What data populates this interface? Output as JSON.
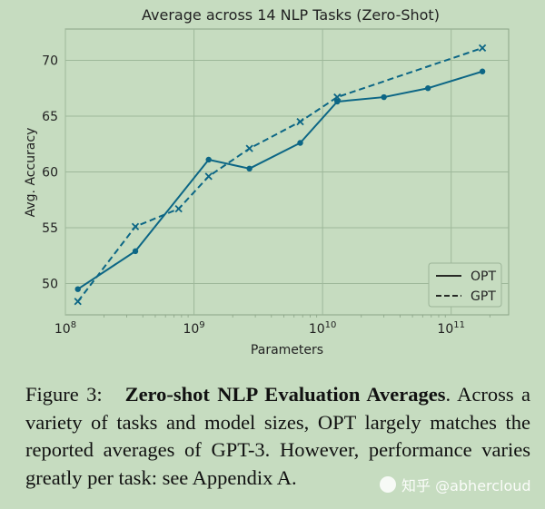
{
  "chart_data": {
    "type": "line",
    "title": "Average across 14 NLP Tasks (Zero-Shot)",
    "xlabel": "Parameters",
    "ylabel": "Avg. Accuracy",
    "xscale": "log",
    "xlim": [
      100000000.0,
      280000000000.0
    ],
    "ylim": [
      47.2,
      72.8
    ],
    "yticks": [
      50,
      55,
      60,
      65,
      70
    ],
    "xticks": [
      {
        "base": "10",
        "exp": "8"
      },
      {
        "base": "10",
        "exp": "9"
      },
      {
        "base": "10",
        "exp": "10"
      },
      {
        "base": "10",
        "exp": "11"
      }
    ],
    "grid": true,
    "legend_position": "bottom-right",
    "series": [
      {
        "name": "OPT",
        "style": "solid",
        "marker": "circle",
        "x": [
          125000000.0,
          350000000.0,
          1300000000.0,
          2700000000.0,
          6700000000.0,
          13000000000.0,
          30000000000.0,
          66000000000.0,
          175000000000.0
        ],
        "y": [
          49.5,
          52.9,
          61.1,
          60.3,
          62.6,
          66.3,
          66.7,
          67.5,
          69.0
        ]
      },
      {
        "name": "GPT",
        "style": "dashed",
        "marker": "x",
        "x": [
          125000000.0,
          350000000.0,
          760000000.0,
          1300000000.0,
          2700000000.0,
          6700000000.0,
          13000000000.0,
          175000000000.0
        ],
        "y": [
          48.4,
          55.1,
          56.7,
          59.6,
          62.1,
          64.5,
          66.7,
          71.1
        ]
      }
    ],
    "colors": {
      "line": "#0c6685",
      "grid": "#9eb89a",
      "axis": "#8aa386"
    }
  },
  "caption": {
    "label": "Figure 3:",
    "bold_title": "Zero-shot NLP Evaluation Averages",
    "body": ". Across a variety of tasks and model sizes, OPT largely matches the reported averages of GPT-3. However, performance varies greatly per task: see Appendix A."
  },
  "watermark": {
    "text": "知乎 @abhercloud"
  }
}
